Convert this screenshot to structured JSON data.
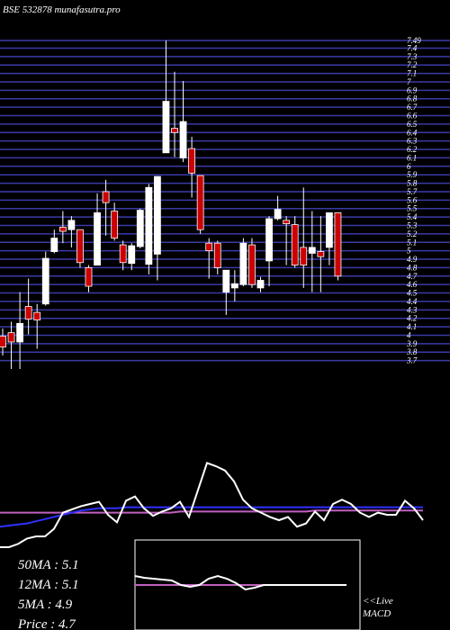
{
  "chart_data": [
    {
      "type": "candlestick",
      "title": "BSE 532878 munafasutra.pro",
      "open": [
        3.99,
        4.03,
        3.92,
        4.34,
        4.27,
        4.37,
        4.99,
        5.28,
        5.25,
        5.25,
        4.8,
        4.83,
        5.7,
        5.47,
        5.07,
        4.85,
        5.05,
        4.84,
        4.96,
        6.16,
        6.45,
        6.1,
        6.21,
        5.89,
        5.09,
        5.09,
        4.51,
        4.56,
        4.6,
        5.07,
        4.56,
        4.88,
        5.38,
        5.36,
        5.31,
        5.04,
        4.97,
        4.99,
        5.04,
        5.45
      ],
      "high": [
        4.08,
        4.16,
        4.51,
        4.67,
        4.37,
        4.99,
        5.25,
        5.47,
        5.41,
        5.25,
        4.83,
        5.68,
        5.84,
        5.57,
        5.12,
        5.09,
        5.5,
        5.79,
        5.88,
        7.49,
        7.12,
        7.01,
        6.35,
        5.89,
        5.15,
        5.12,
        4.77,
        4.77,
        5.15,
        5.15,
        4.69,
        5.41,
        5.65,
        5.41,
        5.41,
        5.75,
        5.47,
        5.41,
        5.45,
        5.45
      ],
      "low": [
        3.76,
        3.6,
        3.6,
        4.01,
        3.84,
        4.35,
        4.97,
        5.09,
        5.04,
        4.8,
        4.51,
        4.83,
        5.18,
        5.12,
        4.77,
        4.77,
        5.03,
        4.72,
        4.65,
        6.16,
        6.11,
        6.05,
        5.63,
        5.2,
        4.67,
        4.72,
        4.24,
        4.4,
        4.58,
        4.56,
        4.51,
        4.58,
        5.36,
        4.83,
        4.8,
        4.56,
        4.51,
        4.51,
        4.83,
        4.65
      ],
      "close": [
        3.86,
        3.92,
        4.14,
        4.19,
        4.18,
        4.91,
        5.15,
        5.23,
        5.36,
        4.86,
        4.58,
        5.45,
        5.57,
        5.15,
        4.86,
        5.06,
        5.48,
        5.75,
        5.88,
        6.77,
        6.4,
        6.53,
        5.92,
        5.25,
        5.0,
        4.8,
        4.77,
        4.61,
        5.09,
        4.6,
        4.65,
        5.38,
        5.49,
        5.32,
        4.83,
        4.83,
        5.04,
        4.93,
        5.45,
        4.7
      ],
      "up_color": "#ffffff",
      "down_color": "#cc0000",
      "ylim": [
        3.6,
        7.49
      ],
      "yticks": [
        3.7,
        3.8,
        3.9,
        4,
        4.1,
        4.2,
        4.3,
        4.4,
        4.5,
        4.6,
        4.7,
        4.8,
        4.9,
        5,
        5.1,
        5.2,
        5.3,
        5.4,
        5.5,
        5.6,
        5.7,
        5.8,
        5.9,
        6,
        6.1,
        6.2,
        6.3,
        6.4,
        6.5,
        6.6,
        6.7,
        6.8,
        6.9,
        7,
        7.1,
        7.2,
        7.3,
        7.4,
        7.49
      ],
      "grid": true,
      "grid_color": "#3a3aa8"
    },
    {
      "type": "line",
      "ylim": [
        0,
        100
      ],
      "annotations": [
        "50MA : 5.1",
        "12MA : 5.1",
        "5MA : 4.9",
        "Price   : 4.7"
      ],
      "series": [
        {
          "color": "#c060c0",
          "values": [
            42,
            42,
            42,
            42,
            42,
            42,
            42,
            42,
            42,
            42,
            42,
            42,
            42,
            42,
            42,
            42,
            42,
            42,
            42,
            42,
            43,
            43,
            43,
            43,
            43,
            43,
            43,
            43,
            43,
            43,
            43,
            43,
            43,
            43,
            43,
            44,
            44,
            44,
            44,
            44,
            44,
            44,
            44,
            44,
            44,
            44,
            44,
            44
          ]
        },
        {
          "color": "#3030ff",
          "values": [
            29,
            30,
            31,
            32,
            34,
            36,
            38,
            40,
            42,
            44,
            45,
            46,
            46,
            46,
            47,
            47,
            47,
            47,
            47,
            47,
            47,
            47,
            47,
            47,
            47,
            47,
            47,
            47,
            47,
            47,
            47,
            47,
            47,
            47,
            47,
            47,
            47,
            47,
            47,
            47,
            47,
            47,
            47,
            47,
            47,
            47,
            47,
            47
          ]
        },
        {
          "color": "#ffffff",
          "values": [
            10,
            10,
            13,
            18,
            20,
            20,
            27,
            42,
            45,
            48,
            50,
            52,
            40,
            33,
            53,
            57,
            46,
            39,
            43,
            46,
            52,
            38,
            63,
            88,
            85,
            81,
            71,
            54,
            46,
            42,
            38,
            35,
            38,
            29,
            32,
            43,
            35,
            50,
            54,
            50,
            42,
            38,
            42,
            40,
            40,
            53,
            46,
            35
          ]
        }
      ]
    },
    {
      "type": "line",
      "ylim": [
        -50,
        50
      ],
      "annotations": [
        "<<Live",
        "MACD"
      ],
      "series": [
        {
          "color": "#c060c0",
          "values": [
            0,
            0,
            0,
            0,
            0,
            0,
            0,
            0,
            0,
            0,
            0,
            0,
            0,
            0,
            0,
            0,
            0,
            0,
            0,
            0,
            0,
            0,
            0,
            0
          ]
        },
        {
          "color": "#ffffff",
          "values": [
            10,
            8,
            7,
            6,
            5,
            0,
            -2,
            0,
            7,
            10,
            7,
            2,
            -5,
            -3,
            0,
            0,
            0,
            0,
            0,
            0,
            0,
            0,
            0,
            0
          ]
        }
      ]
    }
  ]
}
